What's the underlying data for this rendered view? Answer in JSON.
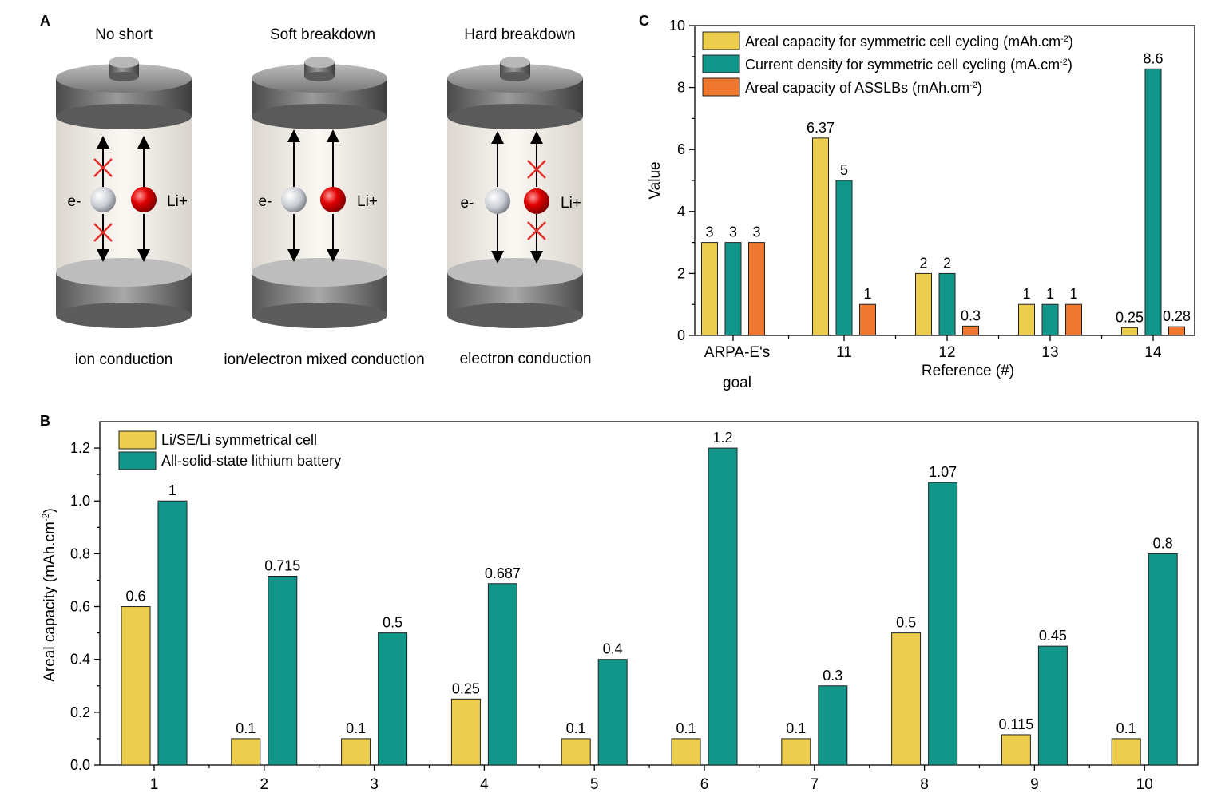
{
  "panel_a": {
    "label": "A",
    "batteries": [
      {
        "title": "No short",
        "caption": "ion conduction",
        "electron_label": "e-",
        "ion_label": "Li+",
        "electron_blocked": true,
        "ion_blocked": false
      },
      {
        "title": "Soft breakdown",
        "caption": "ion/electron mixed conduction",
        "electron_label": "e-",
        "ion_label": "Li+",
        "electron_blocked": false,
        "ion_blocked": false
      },
      {
        "title": "Hard breakdown",
        "caption": "electron conduction",
        "electron_label": "e-",
        "ion_label": "Li+",
        "electron_blocked": false,
        "ion_blocked": true
      }
    ],
    "colors": {
      "electron": "#dcdcdc",
      "ion": "#d40000",
      "block": "#e0302a",
      "cap": "#6e6e6e",
      "body": "#f4efe8"
    }
  },
  "chart_data": [
    {
      "panel_label": "C",
      "type": "bar",
      "categories": [
        "ARPA-E's goal",
        "11",
        "12",
        "13",
        "14"
      ],
      "category_line1": [
        "ARPA-E's",
        "11",
        "12",
        "13",
        "14"
      ],
      "category_line2": [
        "goal",
        "",
        "",
        "",
        ""
      ],
      "series": [
        {
          "name": "Areal capacity for symmetric cell cycling (mAh.cm",
          "unit_sup": "-2",
          "name_end": ")",
          "color": "#ecce4c",
          "values": [
            3,
            6.37,
            2,
            1,
            0.25
          ],
          "labels": [
            "3",
            "6.37",
            "2",
            "1",
            "0.25"
          ]
        },
        {
          "name": "Current density for symmetric cell cycling (mA.cm",
          "unit_sup": "-2",
          "name_end": ")",
          "color": "#13968a",
          "values": [
            3,
            5,
            2,
            1,
            8.6
          ],
          "labels": [
            "3",
            "5",
            "2",
            "1",
            "8.6"
          ]
        },
        {
          "name": "Areal capacity of ASSLBs (mAh.cm",
          "unit_sup": "-2",
          "name_end": ")",
          "color": "#f0782e",
          "values": [
            3,
            1,
            0.3,
            1,
            0.28
          ],
          "labels": [
            "3",
            "1",
            "0.3",
            "1",
            "0.28"
          ]
        }
      ],
      "ylabel": "Value",
      "xlabel": "Reference (#)",
      "ylim": [
        0,
        10
      ],
      "yticks": [
        0,
        2,
        4,
        6,
        8,
        10
      ],
      "ytick_labels": [
        "0",
        "2",
        "4",
        "6",
        "8",
        "10"
      ],
      "legend_position": "top-left"
    },
    {
      "panel_label": "B",
      "type": "bar",
      "categories": [
        "1",
        "2",
        "3",
        "4",
        "5",
        "6",
        "7",
        "8",
        "9",
        "10"
      ],
      "series": [
        {
          "name": "Li/SE/Li symmetrical cell",
          "color": "#ecce4c",
          "values": [
            0.6,
            0.1,
            0.1,
            0.25,
            0.1,
            0.1,
            0.1,
            0.5,
            0.115,
            0.1
          ],
          "labels": [
            "0.6",
            "0.1",
            "0.1",
            "0.25",
            "0.1",
            "0.1",
            "0.1",
            "0.5",
            "0.115",
            "0.1"
          ]
        },
        {
          "name": "All-solid-state lithium battery",
          "color": "#13968a",
          "values": [
            1,
            0.715,
            0.5,
            0.687,
            0.4,
            1.2,
            0.3,
            1.07,
            0.45,
            0.8
          ],
          "labels": [
            "1",
            "0.715",
            "0.5",
            "0.687",
            "0.4",
            "1.2",
            "0.3",
            "1.07",
            "0.45",
            "0.8"
          ]
        }
      ],
      "ylabel": "Areal capacity (mAh.cm",
      "ylabel_sup": "-2",
      "ylabel_end": ")",
      "ylim": [
        0,
        1.3
      ],
      "yticks": [
        0,
        0.2,
        0.4,
        0.6,
        0.8,
        1.0,
        1.2
      ],
      "ytick_labels": [
        "0.0",
        "0.2",
        "0.4",
        "0.6",
        "0.8",
        "1.0",
        "1.2"
      ],
      "legend_position": "top-left"
    }
  ]
}
